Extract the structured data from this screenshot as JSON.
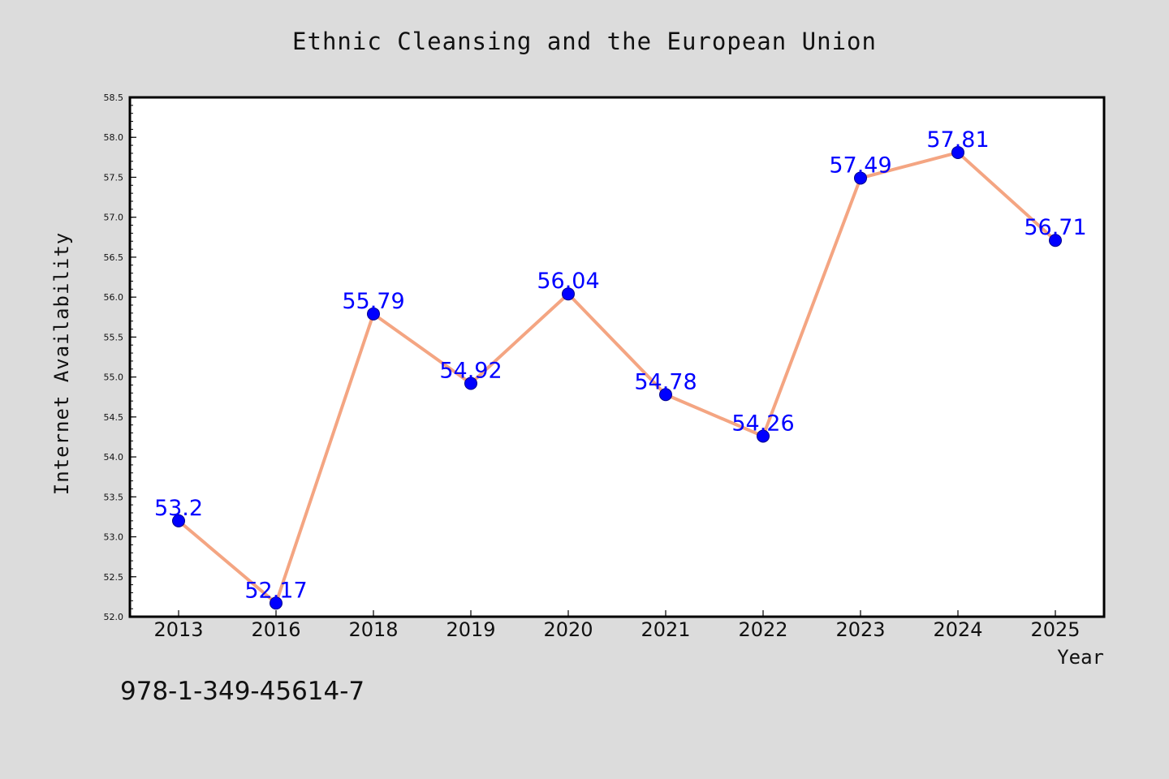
{
  "chart_data": {
    "type": "line",
    "title": "Ethnic Cleansing and the European Union",
    "xlabel": "Year",
    "ylabel": "Internet Availability",
    "categories": [
      "2013",
      "2016",
      "2018",
      "2019",
      "2020",
      "2021",
      "2022",
      "2023",
      "2024",
      "2025"
    ],
    "series": [
      {
        "values": [
          53.2,
          52.17,
          55.79,
          54.92,
          56.04,
          54.78,
          54.26,
          57.49,
          57.81,
          56.71
        ],
        "labels": [
          "53.2",
          "52.17",
          "55.79",
          "54.92",
          "56.04",
          "54.78",
          "54.26",
          "57.49",
          "57.81",
          "56.71"
        ],
        "line_color": "#f4a582",
        "marker_color": "#0000ff"
      }
    ],
    "ylim": [
      52.0,
      58.5
    ],
    "yticks": [
      "52.0",
      "52.5",
      "53.0",
      "53.5",
      "54.0",
      "54.5",
      "55.0",
      "55.5",
      "56.0",
      "56.5",
      "57.0",
      "57.5",
      "58.0",
      "58.5"
    ],
    "grid": false,
    "legend": "none"
  },
  "annotation": {
    "isbn": "978-1-349-45614-7"
  },
  "colors": {
    "background": "#dcdcdc",
    "plot_area": "#ffffff",
    "line": "#f4a582",
    "marker": "#0000ff",
    "label": "#0000ff"
  }
}
